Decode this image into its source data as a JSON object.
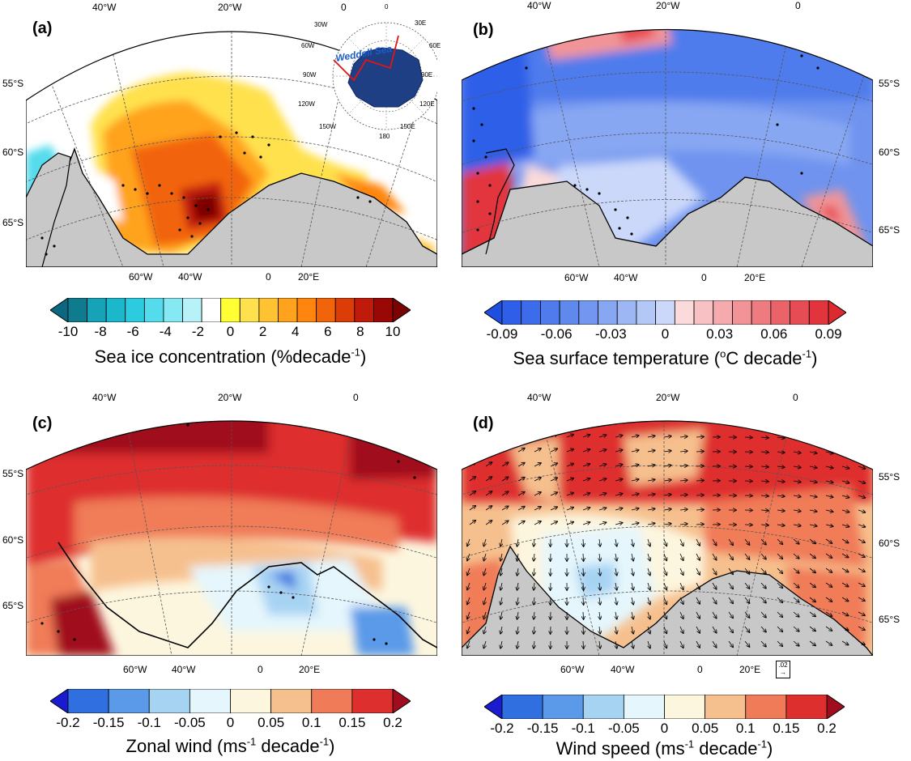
{
  "panels": [
    {
      "id": "a",
      "label": "(a)",
      "top_lon": [
        "40°W",
        "20°W",
        "0"
      ],
      "bottom_lon": [
        "60°W",
        "40°W",
        "0",
        "20°E"
      ],
      "lat": [
        "55°S",
        "60°S",
        "65°S"
      ],
      "lat_side": "left",
      "stippling": "significant trend"
    },
    {
      "id": "b",
      "label": "(b)",
      "top_lon": [
        "40°W",
        "20°W",
        "0"
      ],
      "bottom_lon": [
        "60°W",
        "40°W",
        "0",
        "20°E"
      ],
      "lat": [
        "55°S",
        "60°S",
        "65°S"
      ],
      "lat_side": "right"
    },
    {
      "id": "c",
      "label": "(c)",
      "top_lon": [
        "40°W",
        "20°W",
        "0"
      ],
      "bottom_lon": [
        "60°W",
        "40°W",
        "0",
        "20°E"
      ],
      "lat": [
        "55°S",
        "60°S",
        "65°S"
      ],
      "lat_side": "left"
    },
    {
      "id": "d",
      "label": "(d)",
      "top_lon": [
        "40°W",
        "20°W",
        "0"
      ],
      "bottom_lon": [
        "60°W",
        "40°W",
        "0",
        "20°E"
      ],
      "lat": [
        "55°S",
        "60°S",
        "65°S"
      ],
      "lat_side": "right",
      "ref_vector": ".02"
    }
  ],
  "inset": {
    "region_name": "Weddell Sea",
    "lon_labels": [
      "30W",
      "0",
      "30E",
      "60W",
      "60E",
      "90W",
      "90E",
      "120W",
      "120E",
      "150W",
      "150E",
      "180"
    ]
  },
  "colorbars": {
    "a": {
      "title": "Sea ice concentration (%decade",
      "title_sup": "-1",
      "title_end": ")",
      "ticks": [
        "-10",
        "-8",
        "-6",
        "-4",
        "-2",
        "0",
        "2",
        "4",
        "6",
        "8",
        "10"
      ],
      "colors": [
        "#0e7b8f",
        "#16a3b8",
        "#1bb8cc",
        "#2ccbe0",
        "#55dcec",
        "#86e8f2",
        "#b7f2f8",
        "#ffffff",
        "#ffff33",
        "#ffe14d",
        "#ffc233",
        "#ffa31f",
        "#ff850f",
        "#f2640a",
        "#dc3d08",
        "#c01a0a",
        "#9a0806"
      ],
      "end_low": "#0a6880",
      "end_high": "#7a0404"
    },
    "b": {
      "title": "Sea surface temperature (",
      "title_sup": "o",
      "title_mid": "C decade",
      "title_sup2": "-1",
      "title_end": ")",
      "ticks": [
        "-0.09",
        "-0.06",
        "-0.03",
        "0",
        "0.03",
        "0.06",
        "0.09"
      ],
      "colors": [
        "#2f5fe8",
        "#3d6cea",
        "#4f7bec",
        "#6089ee",
        "#7397f0",
        "#88a7f3",
        "#9db7f5",
        "#b4c8f8",
        "#cbd8fa",
        "#fadada",
        "#f8c2c4",
        "#f5aaad",
        "#f29497",
        "#ee7b80",
        "#ea6369",
        "#e64c53",
        "#e2343c"
      ],
      "end_low": "#1f4fe0",
      "end_high": "#dd2a30"
    },
    "c": {
      "title": "Zonal wind (ms",
      "title_sup": "-1",
      "title_mid": " decade",
      "title_sup2": "-1",
      "title_end": ")",
      "ticks": [
        "-0.2",
        "-0.15",
        "-0.1",
        "-0.05",
        "0",
        "0.05",
        "0.1",
        "0.15",
        "0.2"
      ],
      "colors": [
        "#2f6fe0",
        "#5a9ae9",
        "#a7d3f3",
        "#e5f6fc",
        "#fdf6df",
        "#f6c08e",
        "#f07b59",
        "#de2f2f"
      ],
      "end_low": "#1a1ad0",
      "end_high": "#a00d1f"
    },
    "d": {
      "title": "Wind speed (ms",
      "title_sup": "-1",
      "title_mid": " decade",
      "title_sup2": "-1",
      "title_end": ")",
      "ticks": [
        "-0.2",
        "-0.15",
        "-0.1",
        "-0.05",
        "0",
        "0.05",
        "0.1",
        "0.15",
        "0.2"
      ],
      "colors": [
        "#2f6fe0",
        "#5a9ae9",
        "#a7d3f3",
        "#e5f6fc",
        "#fdf6df",
        "#f6c08e",
        "#f07b59",
        "#de2f2f"
      ],
      "end_low": "#1a1ad0",
      "end_high": "#a00d1f"
    }
  }
}
